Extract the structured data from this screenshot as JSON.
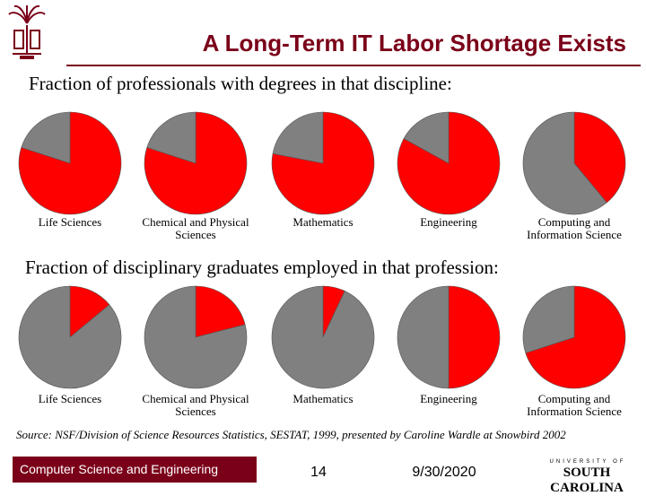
{
  "slide": {
    "title": "A Long-Term IT Labor Shortage Exists",
    "source_note": "Source: NSF/Division of Science Resources Statistics, SESTAT, 1999, presented by Caroline Wardle at Snowbird 2002"
  },
  "footer": {
    "course": "Computer Science and Engineering",
    "page": "14",
    "date": "9/30/2020",
    "logo_small": "UNIVERSITY OF",
    "logo_big": "SOUTH CAROLINA"
  },
  "colors": {
    "accent": "#7a0019",
    "pie_red": "#ff0000",
    "pie_gray": "#808080"
  },
  "chart_data": [
    {
      "type": "pie",
      "title": "Fraction of professionals with degrees in that discipline:",
      "slice_colors": [
        "#ff0000",
        "#808080"
      ],
      "pies": [
        {
          "label": "Life Sciences",
          "values": [
            0.8,
            0.2
          ]
        },
        {
          "label": "Chemical and Physical Sciences",
          "values": [
            0.8,
            0.2
          ]
        },
        {
          "label": "Mathematics",
          "values": [
            0.78,
            0.22
          ]
        },
        {
          "label": "Engineering",
          "values": [
            0.83,
            0.17
          ]
        },
        {
          "label": "Computing and Information Science",
          "values": [
            0.39,
            0.61
          ]
        }
      ]
    },
    {
      "type": "pie",
      "title": "Fraction of disciplinary graduates employed in that profession:",
      "slice_colors": [
        "#ff0000",
        "#808080"
      ],
      "pies": [
        {
          "label": "Life Sciences",
          "values": [
            0.14,
            0.86
          ]
        },
        {
          "label": "Chemical and Physical Sciences",
          "values": [
            0.21,
            0.79
          ]
        },
        {
          "label": "Mathematics",
          "values": [
            0.07,
            0.93
          ]
        },
        {
          "label": "Engineering",
          "values": [
            0.5,
            0.5
          ]
        },
        {
          "label": "Computing and Information Science",
          "values": [
            0.7,
            0.3
          ]
        }
      ]
    }
  ]
}
